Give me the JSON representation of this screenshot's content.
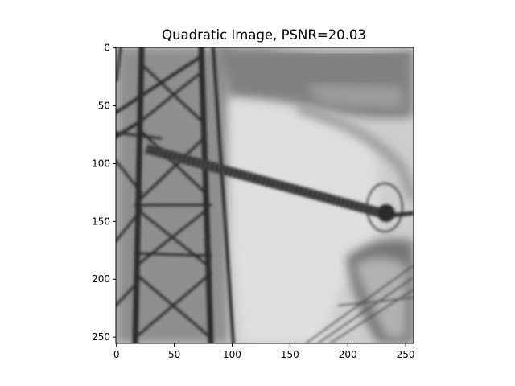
{
  "chart_data": {
    "type": "heatmap",
    "title": "Quadratic Image, PSNR=20.03",
    "colormap": "gray",
    "image_size": [
      256,
      256
    ],
    "xlim": [
      0,
      255
    ],
    "ylim": [
      255,
      0
    ],
    "xticks": [
      0,
      50,
      100,
      150,
      200,
      250
    ],
    "yticks": [
      0,
      50,
      100,
      150,
      200,
      250
    ],
    "grid": false,
    "subject": "grayscale photograph of a steel transmission tower with an angled insulator string and cables"
  }
}
